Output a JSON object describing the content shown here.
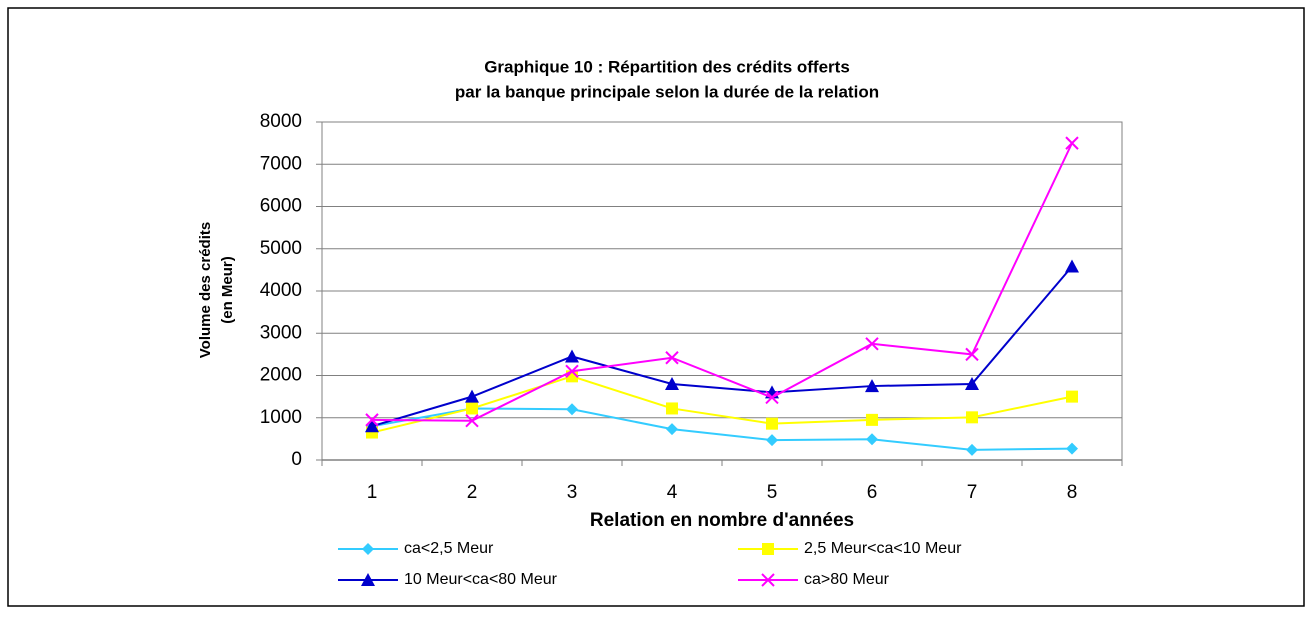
{
  "chart_data": {
    "type": "line",
    "title": [
      "Graphique 10 : Répartition des crédits offerts",
      "par la banque principale selon la durée de la relation"
    ],
    "y_label": [
      "Volume des crédits",
      "(en Meur)"
    ],
    "x_label": "Relation en nombre d'années",
    "categories": [
      "1",
      "2",
      "3",
      "4",
      "5",
      "6",
      "7",
      "8"
    ],
    "series": [
      {
        "name": "ca<2,5 Meur",
        "color": "#33ccff",
        "marker": "diamond",
        "values": [
          800,
          1220,
          1200,
          730,
          470,
          490,
          240,
          270
        ]
      },
      {
        "name": "2,5 Meur<ca<10 Meur",
        "color": "#ffff00",
        "marker": "square",
        "values": [
          650,
          1220,
          1980,
          1220,
          860,
          950,
          1010,
          1500
        ]
      },
      {
        "name": "10 Meur<ca<80 Meur",
        "color": "#0000cc",
        "marker": "triangle",
        "values": [
          800,
          1500,
          2450,
          1800,
          1600,
          1750,
          1800,
          4580
        ]
      },
      {
        "name": "ca>80 Meur",
        "color": "#ff00ff",
        "marker": "x",
        "values": [
          950,
          930,
          2100,
          2420,
          1480,
          2750,
          2500,
          7500
        ]
      }
    ],
    "ylim": [
      0,
      8000
    ],
    "yticks": [
      0,
      1000,
      2000,
      3000,
      4000,
      5000,
      6000,
      7000,
      8000
    ],
    "grid": true
  }
}
